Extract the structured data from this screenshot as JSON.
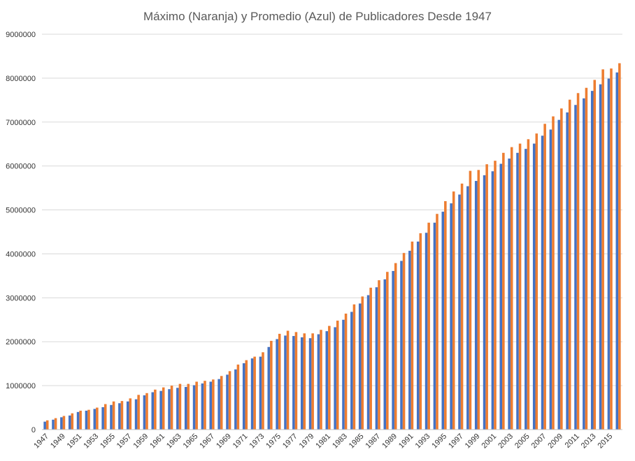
{
  "chart_data": {
    "type": "bar",
    "title": "Máximo (Naranja) y Promedio (Azul) de Publicadores Desde 1947",
    "xlabel": "",
    "ylabel": "",
    "ylim": [
      0,
      9000000
    ],
    "yticks": [
      0,
      1000000,
      2000000,
      3000000,
      4000000,
      5000000,
      6000000,
      7000000,
      8000000,
      9000000
    ],
    "ytick_labels": [
      "0",
      "1000000",
      "2000000",
      "3000000",
      "4000000",
      "5000000",
      "6000000",
      "7000000",
      "8000000",
      "9000000"
    ],
    "grid": true,
    "legend": "none",
    "colors": {
      "promedio": "#4472C4",
      "maximo": "#ED7D31",
      "grid": "#D9D9D9",
      "axis": "#BFBFBF"
    },
    "categories": [
      1947,
      1948,
      1949,
      1950,
      1951,
      1952,
      1953,
      1954,
      1955,
      1956,
      1957,
      1958,
      1959,
      1960,
      1961,
      1962,
      1963,
      1964,
      1965,
      1966,
      1967,
      1968,
      1969,
      1970,
      1971,
      1972,
      1973,
      1974,
      1975,
      1976,
      1977,
      1978,
      1979,
      1980,
      1981,
      1982,
      1983,
      1984,
      1985,
      1986,
      1987,
      1988,
      1989,
      1990,
      1991,
      1992,
      1993,
      1994,
      1995,
      1996,
      1997,
      1998,
      1999,
      2000,
      2001,
      2002,
      2003,
      2004,
      2005,
      2006,
      2007,
      2008,
      2009,
      2010,
      2011,
      2012,
      2013,
      2014,
      2015,
      2016
    ],
    "xtick_labels": [
      "1947",
      "1949",
      "1951",
      "1953",
      "1955",
      "1957",
      "1959",
      "1961",
      "1963",
      "1965",
      "1967",
      "1969",
      "1971",
      "1973",
      "1975",
      "1977",
      "1979",
      "1981",
      "1983",
      "1985",
      "1987",
      "1989",
      "1991",
      "1993",
      "1995",
      "1997",
      "1999",
      "2001",
      "2003",
      "2005",
      "2007",
      "2009",
      "2011",
      "2013",
      "2015"
    ],
    "series": [
      {
        "key": "promedio",
        "values": [
          180000,
          225000,
          280000,
          320000,
          400000,
          430000,
          470000,
          510000,
          560000,
          600000,
          640000,
          690000,
          780000,
          850000,
          880000,
          920000,
          950000,
          970000,
          1010000,
          1050000,
          1090000,
          1150000,
          1250000,
          1370000,
          1510000,
          1620000,
          1660000,
          1880000,
          2060000,
          2140000,
          2130000,
          2100000,
          2080000,
          2170000,
          2240000,
          2330000,
          2500000,
          2680000,
          2870000,
          3060000,
          3240000,
          3420000,
          3610000,
          3840000,
          4070000,
          4280000,
          4480000,
          4710000,
          4960000,
          5150000,
          5350000,
          5540000,
          5660000,
          5790000,
          5880000,
          6050000,
          6170000,
          6300000,
          6390000,
          6510000,
          6690000,
          6830000,
          7050000,
          7220000,
          7390000,
          7540000,
          7710000,
          7860000,
          7990000,
          8130000
        ]
      },
      {
        "key": "maximo",
        "values": [
          210000,
          260000,
          310000,
          370000,
          430000,
          450000,
          500000,
          580000,
          640000,
          650000,
          710000,
          790000,
          830000,
          910000,
          960000,
          1000000,
          1040000,
          1040000,
          1090000,
          1110000,
          1140000,
          1220000,
          1330000,
          1480000,
          1580000,
          1660000,
          1760000,
          2020000,
          2180000,
          2250000,
          2220000,
          2190000,
          2190000,
          2270000,
          2360000,
          2480000,
          2640000,
          2850000,
          3030000,
          3230000,
          3400000,
          3590000,
          3790000,
          4020000,
          4280000,
          4470000,
          4710000,
          4910000,
          5200000,
          5420000,
          5600000,
          5890000,
          5910000,
          6040000,
          6120000,
          6300000,
          6430000,
          6510000,
          6610000,
          6740000,
          6960000,
          7130000,
          7310000,
          7510000,
          7660000,
          7780000,
          7960000,
          8200000,
          8220000,
          8340000
        ]
      }
    ]
  }
}
